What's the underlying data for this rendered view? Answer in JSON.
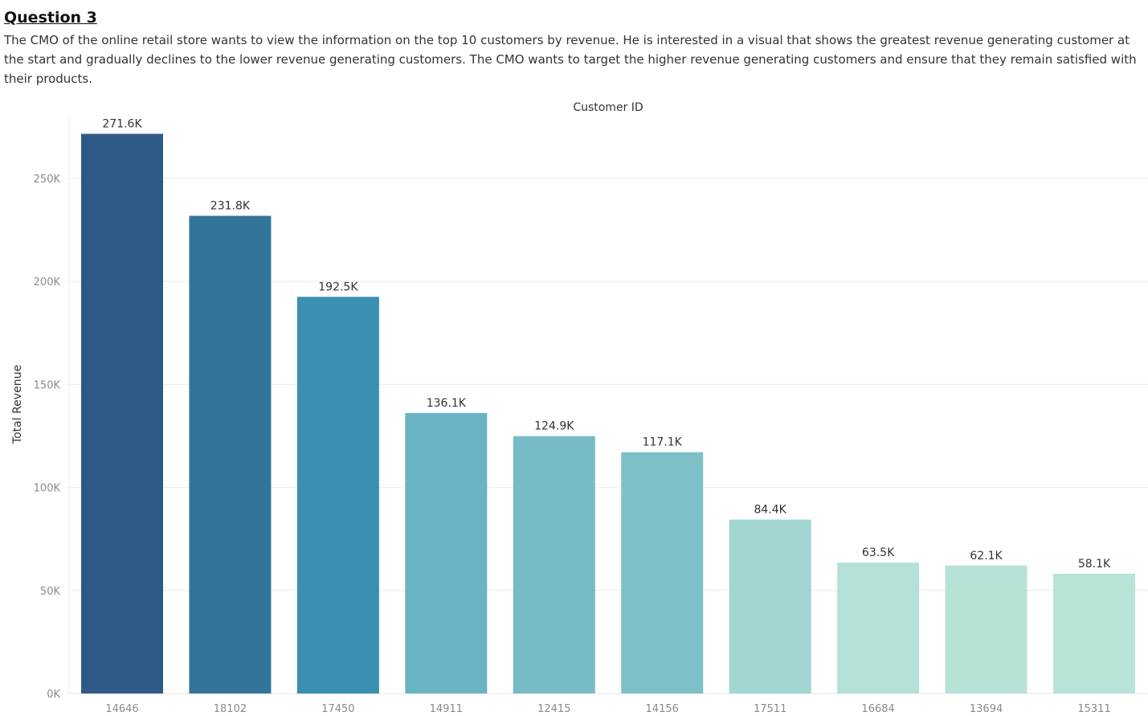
{
  "title": "Question 3",
  "description": "The CMO of the online retail store wants to view the information on the top 10 customers by revenue. He is interested in a visual that shows the greatest revenue generating customer at the start and gradually declines to the lower revenue generating customers. The CMO wants to target the higher revenue generating customers and ensure that they remain satisfied with their products.",
  "colors": {
    "bar_darkest": "#2e5a87",
    "bar_lightest": "#b8e3d8",
    "grid": "#ebebeb",
    "text": "#333333",
    "tick": "#8a8a8a"
  },
  "chart_data": {
    "type": "bar",
    "xlabel": "Customer ID",
    "ylabel": "Total Revenue",
    "ylim": [
      0,
      280000
    ],
    "grid": true,
    "categories": [
      "14646",
      "18102",
      "17450",
      "14911",
      "12415",
      "14156",
      "17511",
      "16684",
      "13694",
      "15311"
    ],
    "values": [
      271600,
      231800,
      192500,
      136100,
      124900,
      117100,
      84400,
      63500,
      62100,
      58100
    ],
    "data_labels": [
      "271.6K",
      "231.8K",
      "192.5K",
      "136.1K",
      "124.9K",
      "117.1K",
      "84.4K",
      "63.5K",
      "62.1K",
      "58.1K"
    ],
    "bar_colors": [
      "#2e5a87",
      "#337499",
      "#3990b1",
      "#69b4c2",
      "#75bcc6",
      "#7fc0c7",
      "#a1d6d2",
      "#b4e1d7",
      "#b6e2d7",
      "#b8e3d8"
    ],
    "yticks": [
      0,
      50000,
      100000,
      150000,
      200000,
      250000
    ],
    "ytick_labels": [
      "0K",
      "50K",
      "100K",
      "150K",
      "200K",
      "250K"
    ]
  }
}
